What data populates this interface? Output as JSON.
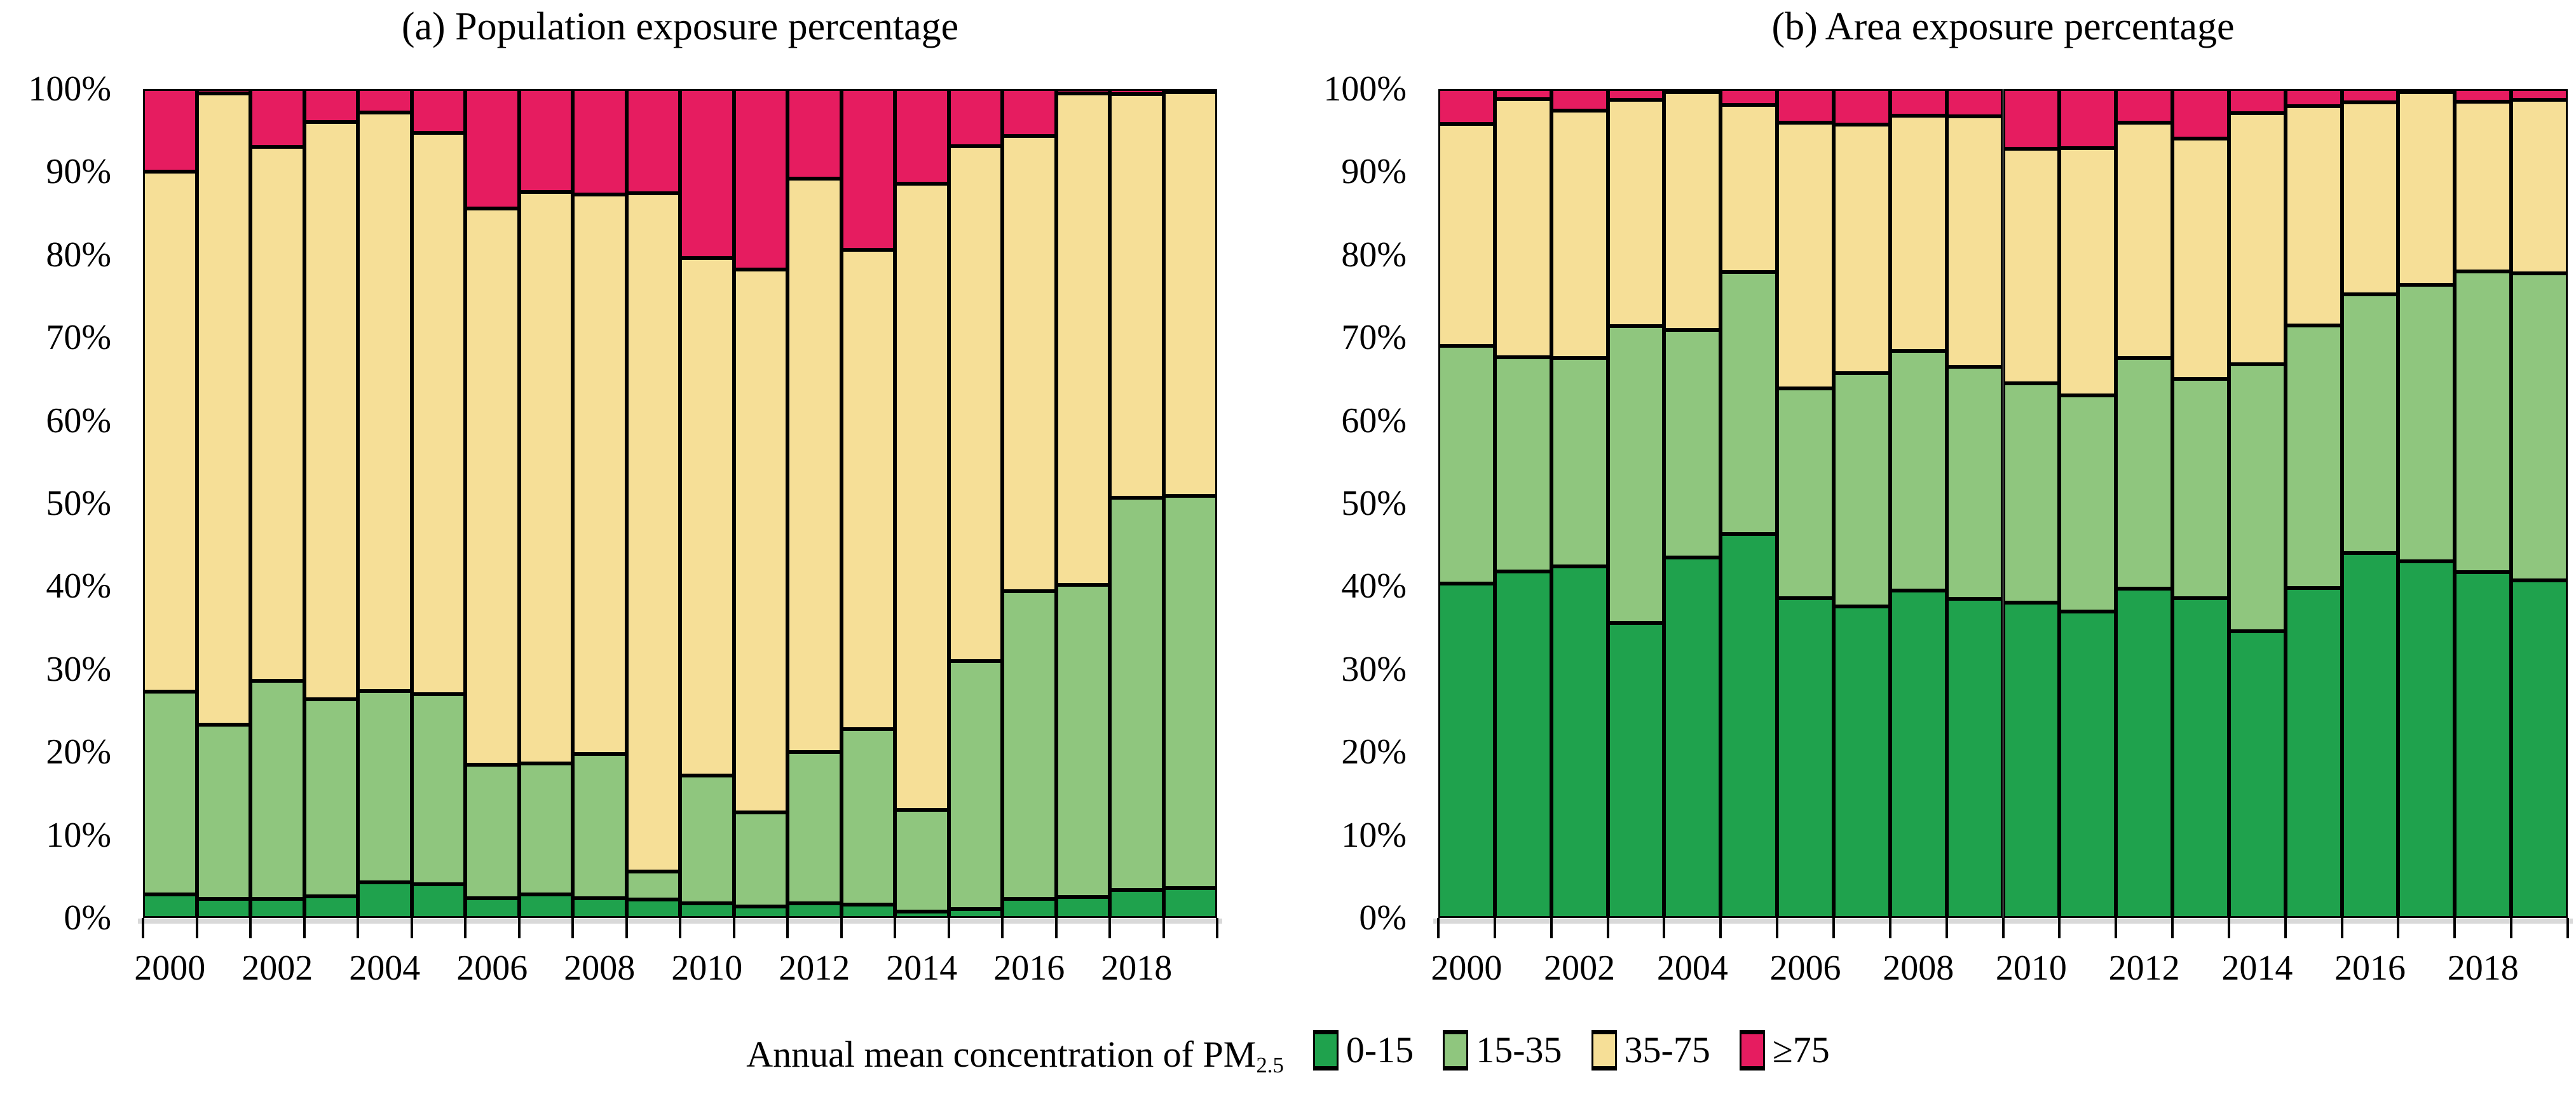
{
  "figure": {
    "background": "#ffffff"
  },
  "colors": {
    "band_0_15": "#1FA24D",
    "band_15_35": "#8FC67E",
    "band_35_75": "#F6DF97",
    "band_ge75": "#E61C60",
    "bar_border": "#000000",
    "baseline": "#D9D9D9",
    "text": "#000000"
  },
  "axis": {
    "y_tick_labels": [
      "100%",
      "90%",
      "80%",
      "70%",
      "60%",
      "50%",
      "40%",
      "30%",
      "20%",
      "10%",
      "0%"
    ],
    "x_tick_labels": [
      "2000",
      "2002",
      "2004",
      "2006",
      "2008",
      "2010",
      "2012",
      "2014",
      "2016",
      "2018"
    ]
  },
  "legend": {
    "title_main": "Annual mean concentration of PM",
    "title_sub": "2.5",
    "items": [
      {
        "label": "0-15",
        "color": "#1FA24D"
      },
      {
        "label": "15-35",
        "color": "#8FC67E"
      },
      {
        "label": "35-75",
        "color": "#F6DF97"
      },
      {
        "label": "≥75",
        "color": "#E61C60"
      }
    ]
  },
  "chart_data": [
    {
      "type": "bar",
      "stacking": "percent",
      "title": "(a) Population exposure percentage",
      "categories": [
        2000,
        2001,
        2002,
        2003,
        2004,
        2005,
        2006,
        2007,
        2008,
        2009,
        2010,
        2011,
        2012,
        2013,
        2014,
        2015,
        2016,
        2017,
        2018,
        2019
      ],
      "ylim": [
        0,
        100
      ],
      "grid": false,
      "legend_position": "bottom",
      "series": [
        {
          "name": "0-15",
          "color": "#1FA24D",
          "values": [
            2.8,
            2.3,
            2.3,
            2.6,
            4.3,
            4.1,
            2.4,
            2.8,
            2.4,
            2.2,
            1.8,
            1.4,
            1.8,
            1.6,
            0.8,
            1.1,
            2.3,
            2.5,
            3.4,
            3.6
          ]
        },
        {
          "name": "15-35",
          "color": "#8FC67E",
          "values": [
            24.5,
            21.0,
            26.3,
            23.8,
            23.1,
            22.9,
            16.1,
            15.8,
            17.4,
            3.4,
            15.4,
            11.3,
            18.2,
            21.2,
            12.2,
            29.9,
            37.1,
            37.7,
            47.3,
            47.3
          ]
        },
        {
          "name": "35-75",
          "color": "#F6DF97",
          "values": [
            62.7,
            76.2,
            64.4,
            69.6,
            69.8,
            67.7,
            67.1,
            69.0,
            67.5,
            81.8,
            62.4,
            65.5,
            69.2,
            57.8,
            75.6,
            62.1,
            54.9,
            59.3,
            48.7,
            48.7
          ]
        },
        {
          "name": "≥75",
          "color": "#E61C60",
          "values": [
            10.0,
            0.5,
            7.0,
            4.0,
            2.8,
            5.3,
            14.4,
            12.4,
            12.7,
            12.6,
            20.4,
            21.8,
            10.8,
            19.4,
            11.4,
            6.9,
            5.7,
            0.5,
            0.6,
            0.4
          ]
        }
      ]
    },
    {
      "type": "bar",
      "stacking": "percent",
      "title": "(b) Area exposure percentage",
      "categories": [
        2000,
        2001,
        2002,
        2003,
        2004,
        2005,
        2006,
        2007,
        2008,
        2009,
        2010,
        2011,
        2012,
        2013,
        2014,
        2015,
        2016,
        2017,
        2018,
        2019
      ],
      "ylim": [
        0,
        100
      ],
      "grid": false,
      "legend_position": "bottom",
      "series": [
        {
          "name": "0-15",
          "color": "#1FA24D",
          "values": [
            40.3,
            41.8,
            42.4,
            35.6,
            43.5,
            46.3,
            38.6,
            37.6,
            39.5,
            38.5,
            38.0,
            37.0,
            39.7,
            38.6,
            34.6,
            39.8,
            44.0,
            43.0,
            41.7,
            41.4
          ]
        },
        {
          "name": "15-35",
          "color": "#8FC67E",
          "values": [
            28.7,
            25.8,
            25.2,
            35.8,
            27.4,
            31.6,
            25.3,
            28.1,
            28.9,
            28.0,
            26.5,
            26.0,
            27.9,
            26.4,
            32.2,
            31.7,
            31.2,
            33.4,
            36.3,
            37.6
          ]
        },
        {
          "name": "35-75",
          "color": "#F6DF97",
          "values": [
            26.8,
            31.2,
            29.8,
            27.3,
            28.7,
            20.2,
            32.0,
            30.0,
            28.4,
            30.2,
            28.3,
            29.9,
            28.3,
            29.0,
            30.3,
            26.4,
            23.2,
            23.2,
            20.5,
            21.3
          ]
        },
        {
          "name": "≥75",
          "color": "#E61C60",
          "values": [
            4.2,
            1.2,
            2.6,
            1.3,
            0.4,
            1.9,
            4.1,
            4.3,
            3.2,
            3.3,
            7.2,
            7.1,
            4.1,
            6.0,
            2.9,
            2.1,
            1.6,
            0.4,
            1.5,
            1.3
          ]
        }
      ]
    }
  ]
}
